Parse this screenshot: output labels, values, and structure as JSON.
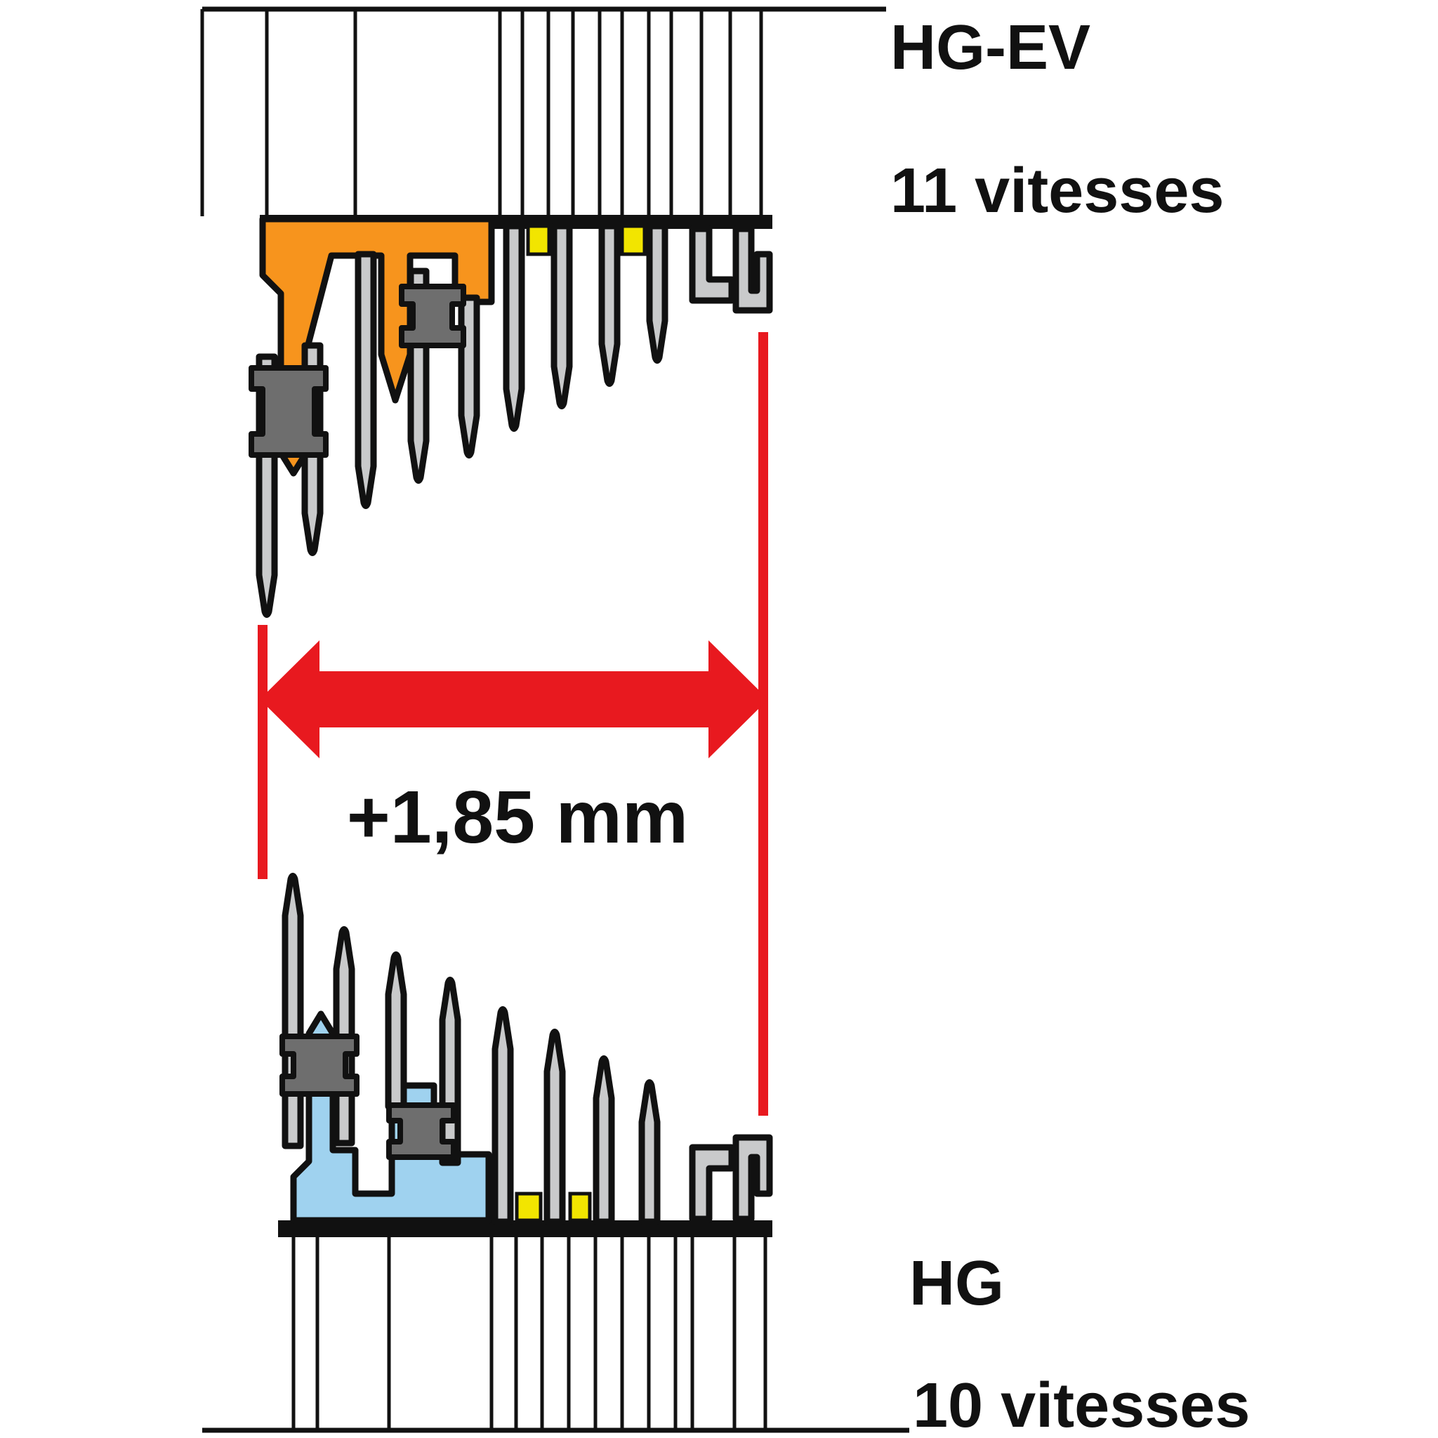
{
  "labels": {
    "top_system": "HG-EV",
    "top_speeds": "11 vitesses",
    "bottom_system": "HG",
    "bottom_speeds": "10 vitesses",
    "measurement_value": "+1,85 mm"
  },
  "colors": {
    "outline": "#111111",
    "carrier_top_orange": "#F7941D",
    "carrier_bottom_blue": "#9FD2EF",
    "spacer_yellow": "#F2E500",
    "sprocket_gray": "#C9CACB",
    "spacer_dark_gray": "#6E6E6E",
    "highlight_red": "#E8191F",
    "background": "#FFFFFF"
  }
}
